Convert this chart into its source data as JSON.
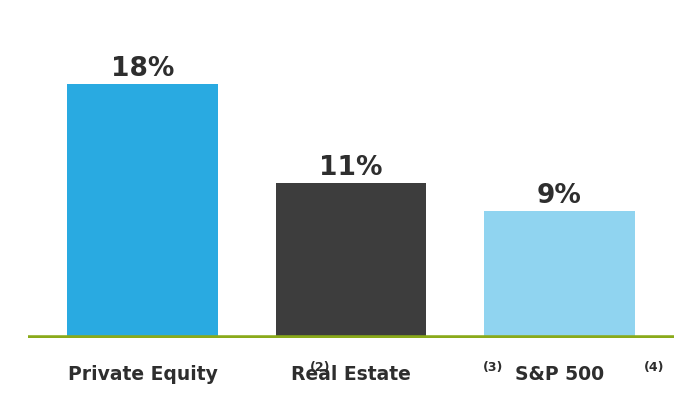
{
  "labels_main": [
    "Private Equity",
    "Real Estate",
    "S&P 500"
  ],
  "labels_sup": [
    "(2)",
    "(3)",
    "(4)"
  ],
  "values": [
    18,
    11,
    9
  ],
  "bar_colors": [
    "#29aae1",
    "#3d3d3d",
    "#90d4f0"
  ],
  "value_labels": [
    "18%",
    "11%",
    "9%"
  ],
  "ylim": [
    0,
    22
  ],
  "background_color": "#ffffff",
  "bar_width": 0.72,
  "value_fontsize": 19,
  "label_fontsize": 13.5,
  "sup_fontsize": 9,
  "baseline_color": "#8aaa1a",
  "baseline_linewidth": 4,
  "label_color": "#2e2e2e",
  "value_color": "#2e2e2e"
}
